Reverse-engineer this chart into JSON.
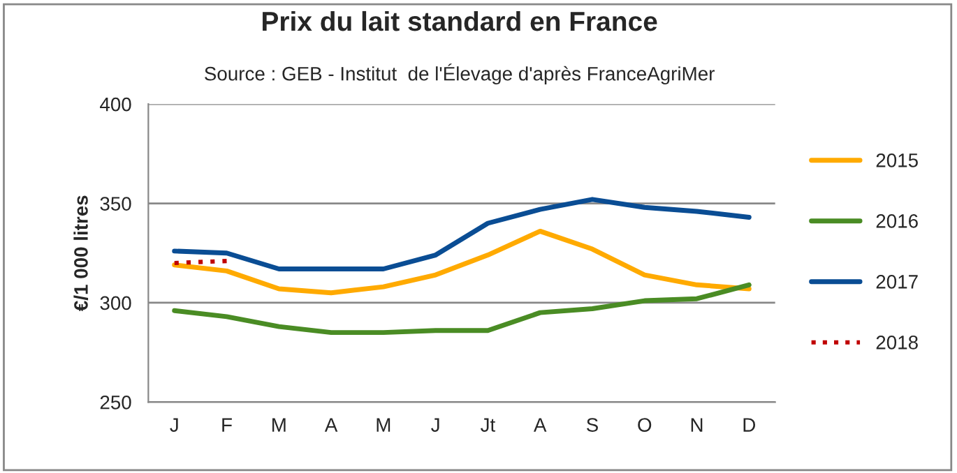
{
  "chart_data": {
    "type": "line",
    "title": "Prix du lait standard en France",
    "subtitle": "Source : GEB - Institut  de l'Élevage d'après FranceAgriMer",
    "ylabel": "€/1 000 litres",
    "categories": [
      "J",
      "F",
      "M",
      "A",
      "M",
      "J",
      "Jt",
      "A",
      "S",
      "O",
      "N",
      "D"
    ],
    "series": [
      {
        "name": "2015",
        "color": "#ffaa00",
        "values": [
          319,
          316,
          307,
          305,
          308,
          314,
          324,
          336,
          327,
          314,
          309,
          307
        ]
      },
      {
        "name": "2016",
        "color": "#4a8c24",
        "values": [
          296,
          293,
          288,
          285,
          285,
          286,
          286,
          295,
          297,
          301,
          302,
          309
        ]
      },
      {
        "name": "2017",
        "color": "#0a4d94",
        "values": [
          326,
          325,
          317,
          317,
          317,
          324,
          340,
          347,
          352,
          348,
          346,
          343
        ]
      },
      {
        "name": "2018",
        "color": "#c00000",
        "line_style": "dotted",
        "values": [
          320,
          321,
          null,
          null,
          null,
          null,
          null,
          null,
          null,
          null,
          null,
          null
        ]
      }
    ],
    "ylim": [
      250,
      400
    ],
    "yticks": [
      250,
      300,
      350,
      400
    ],
    "grid": "y",
    "legend": "right",
    "marker": "none",
    "line_style": "solid"
  }
}
